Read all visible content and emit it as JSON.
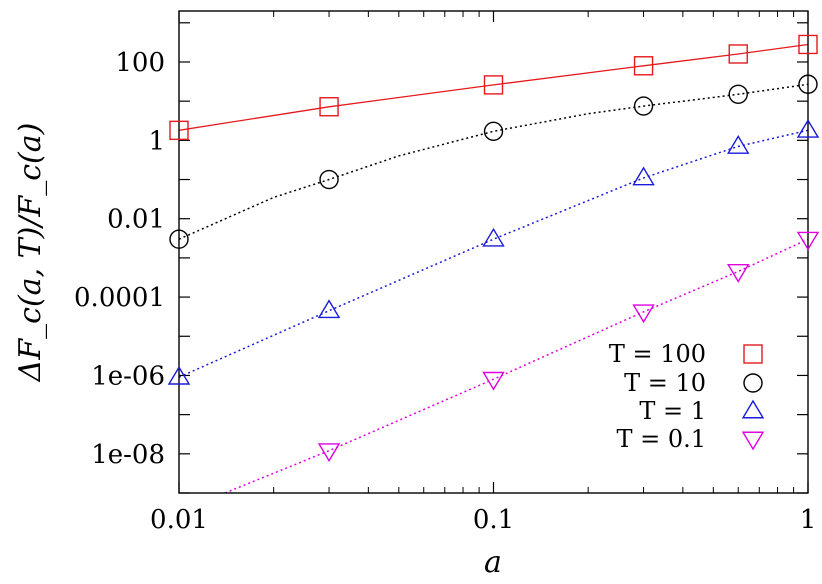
{
  "chart_data": {
    "type": "line",
    "xscale": "log",
    "yscale": "log",
    "xlim": [
      0.01,
      1
    ],
    "ylim": [
      1e-09,
      2000
    ],
    "xlabel": "a",
    "ylabel": "ΔF_c(a, T)/F_c(a)",
    "x_ticks": [
      0.01,
      0.1,
      1
    ],
    "x_tick_labels": [
      "0.01",
      "0.1",
      "1"
    ],
    "y_ticks": [
      1e-08,
      1e-06,
      0.0001,
      0.01,
      1,
      100
    ],
    "y_tick_labels": [
      "1e-08",
      "1e-06",
      "0.0001",
      "0.01",
      "1",
      "100"
    ],
    "grid": false,
    "legend_position": "bottom-right",
    "series": [
      {
        "name": "T = 100",
        "color": "#e41a1c",
        "marker": "square",
        "line_style": "solid",
        "x": [
          0.01,
          0.03,
          0.1,
          0.3,
          0.6,
          1
        ],
        "y": [
          1.8,
          7.2,
          26,
          80,
          160,
          280
        ],
        "curve_x": [
          0.01,
          0.03,
          0.1,
          0.3,
          0.6,
          1
        ],
        "curve_y": [
          1.8,
          7.2,
          26,
          80,
          160,
          280
        ]
      },
      {
        "name": "T = 10",
        "color": "#000000",
        "marker": "circle",
        "line_style": "dotted",
        "x": [
          0.01,
          0.03,
          0.1,
          0.3,
          0.6,
          1
        ],
        "y": [
          0.003,
          0.1,
          1.7,
          7.5,
          15,
          27
        ],
        "curve_x": [
          0.01,
          0.02,
          0.03,
          0.05,
          0.1,
          0.2,
          0.3,
          0.6,
          1
        ],
        "curve_y": [
          0.003,
          0.035,
          0.1,
          0.4,
          1.7,
          4.8,
          7.5,
          15,
          27
        ]
      },
      {
        "name": "T = 1",
        "color": "#1a1adc",
        "marker": "triangle-up",
        "line_style": "dotted",
        "x": [
          0.01,
          0.03,
          0.1,
          0.3,
          0.6,
          1
        ],
        "y": [
          9e-07,
          4.5e-05,
          0.003,
          0.11,
          0.7,
          1.8
        ],
        "curve_x": [
          0.01,
          0.03,
          0.1,
          0.3,
          0.6,
          1
        ],
        "curve_y": [
          9e-07,
          4.5e-05,
          0.003,
          0.11,
          0.7,
          1.8
        ]
      },
      {
        "name": "T = 0.1",
        "color": "#e000e0",
        "marker": "triangle-down",
        "line_style": "dotted",
        "x": [
          0.03,
          0.1,
          0.3,
          0.6,
          1
        ],
        "y": [
          1.2e-08,
          8e-07,
          4.2e-05,
          0.00045,
          0.003
        ],
        "curve_x": [
          0.014,
          0.03,
          0.1,
          0.3,
          0.6,
          1
        ],
        "curve_y": [
          1e-09,
          1.2e-08,
          8e-07,
          4.2e-05,
          0.00045,
          0.003
        ]
      }
    ]
  }
}
